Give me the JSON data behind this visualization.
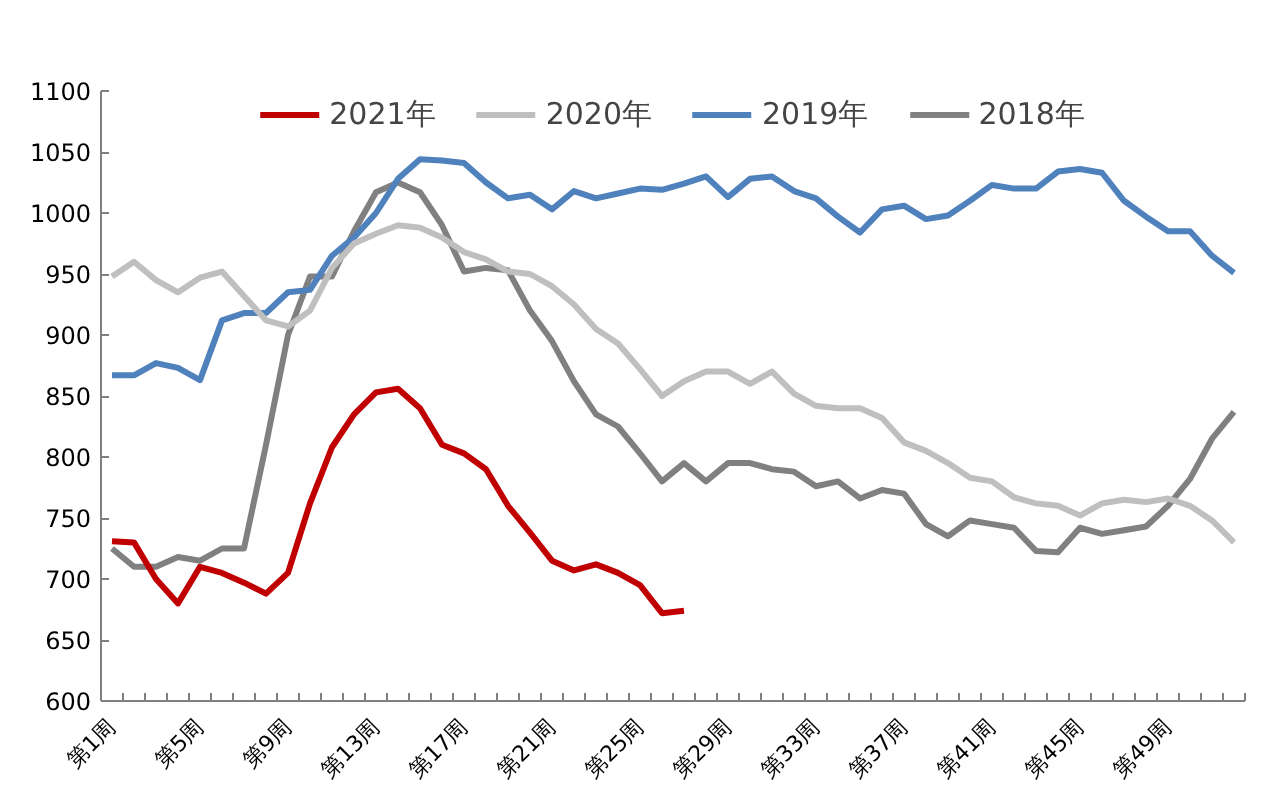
{
  "chart_data": {
    "type": "line",
    "categories": [
      "第1周",
      null,
      null,
      null,
      "第5周",
      null,
      null,
      null,
      "第9周",
      null,
      null,
      null,
      "第13周",
      null,
      null,
      null,
      "第17周",
      null,
      null,
      null,
      "第21周",
      null,
      null,
      null,
      "第25周",
      null,
      null,
      null,
      "第29周",
      null,
      null,
      null,
      "第33周",
      null,
      null,
      null,
      "第37周",
      null,
      null,
      null,
      "第41周",
      null,
      null,
      null,
      "第45周",
      null,
      null,
      null,
      "第49周",
      null,
      null,
      null
    ],
    "ylim": [
      600,
      1100
    ],
    "yticks": [
      600,
      650,
      700,
      750,
      800,
      850,
      900,
      950,
      1000,
      1050,
      1100
    ],
    "grid": false,
    "legend": "top",
    "marker": "none",
    "line_style": "solid",
    "series": [
      {
        "name": "2021年",
        "color": "#c00000",
        "values": [
          731,
          730,
          700,
          680,
          710,
          705,
          697,
          688,
          705,
          762,
          808,
          835,
          853,
          856,
          840,
          810,
          803,
          790,
          760,
          738,
          715,
          707,
          712,
          705,
          695,
          672,
          674,
          null,
          null,
          null,
          null,
          null,
          null,
          null,
          null,
          null,
          null,
          null,
          null,
          null,
          null,
          null,
          null,
          null,
          null,
          null,
          null,
          null,
          null,
          null,
          null,
          null
        ]
      },
      {
        "name": "2020年",
        "color": "#bfbfbf",
        "values": [
          948,
          960,
          945,
          935,
          947,
          952,
          932,
          912,
          907,
          920,
          955,
          975,
          983,
          990,
          988,
          980,
          968,
          962,
          952,
          950,
          940,
          925,
          905,
          893,
          872,
          850,
          862,
          870,
          870,
          860,
          870,
          852,
          842,
          840,
          840,
          832,
          812,
          805,
          795,
          783,
          780,
          767,
          762,
          760,
          752,
          762,
          765,
          763,
          766,
          760,
          748,
          730
        ]
      },
      {
        "name": "2019年",
        "color": "#4f81bd",
        "values": [
          867,
          867,
          877,
          873,
          863,
          912,
          918,
          918,
          935,
          937,
          965,
          980,
          1000,
          1028,
          1044,
          1043,
          1041,
          1025,
          1012,
          1015,
          1003,
          1018,
          1012,
          1016,
          1020,
          1019,
          1024,
          1030,
          1013,
          1028,
          1030,
          1018,
          1012,
          997,
          984,
          1003,
          1006,
          995,
          998,
          1010,
          1023,
          1020,
          1020,
          1034,
          1036,
          1033,
          1010,
          997,
          985,
          985,
          965,
          951
        ]
      },
      {
        "name": "2018年",
        "color": "#808080",
        "values": [
          725,
          710,
          710,
          718,
          715,
          725,
          725,
          810,
          900,
          948,
          948,
          985,
          1017,
          1025,
          1017,
          990,
          952,
          955,
          953,
          920,
          895,
          862,
          835,
          825,
          803,
          780,
          795,
          780,
          795,
          795,
          790,
          788,
          776,
          780,
          766,
          773,
          770,
          745,
          735,
          748,
          745,
          742,
          723,
          722,
          742,
          737,
          740,
          743,
          760,
          782,
          815,
          837
        ]
      }
    ]
  }
}
